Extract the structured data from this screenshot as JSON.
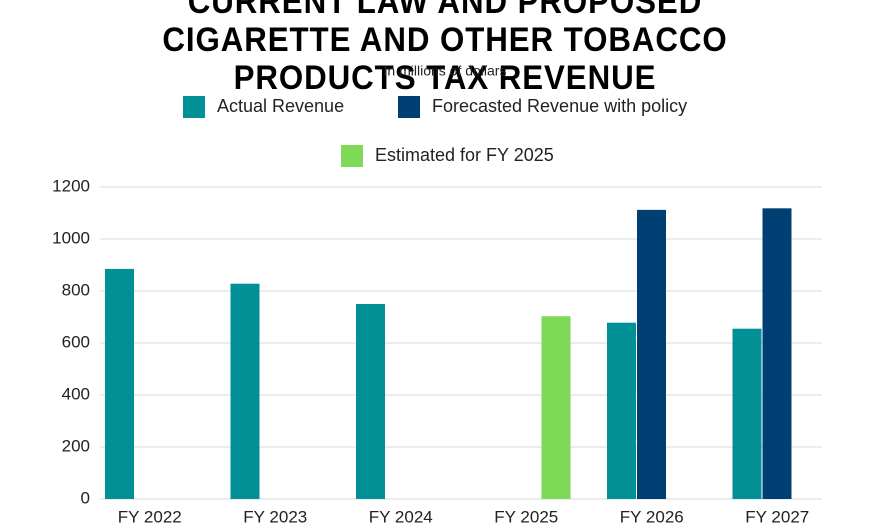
{
  "chart_data": {
    "type": "bar",
    "title": "CURRENT LAW AND PROPOSED CIGARETTE AND OTHER TOBACCO PRODUCTS TAX REVENUE",
    "subtitle": "In millions of dollars",
    "categories": [
      "FY 2022",
      "FY 2023",
      "FY 2024",
      "FY 2025",
      "FY 2026",
      "FY 2027"
    ],
    "series": [
      {
        "name": "Actual Revenue",
        "color": "#009096",
        "values": [
          885,
          828,
          750,
          null,
          678,
          655
        ]
      },
      {
        "name": "Forecasted Revenue with policy",
        "color": "#003f73",
        "values": [
          null,
          null,
          null,
          null,
          1112,
          1118
        ]
      },
      {
        "name": "Estimated for FY 2025",
        "color": "#7ed957",
        "values": [
          null,
          null,
          null,
          703,
          null,
          null
        ]
      }
    ],
    "ylim": [
      0,
      1200
    ],
    "yticks": [
      0,
      200,
      400,
      600,
      800,
      1000,
      1200
    ],
    "grid": true
  }
}
